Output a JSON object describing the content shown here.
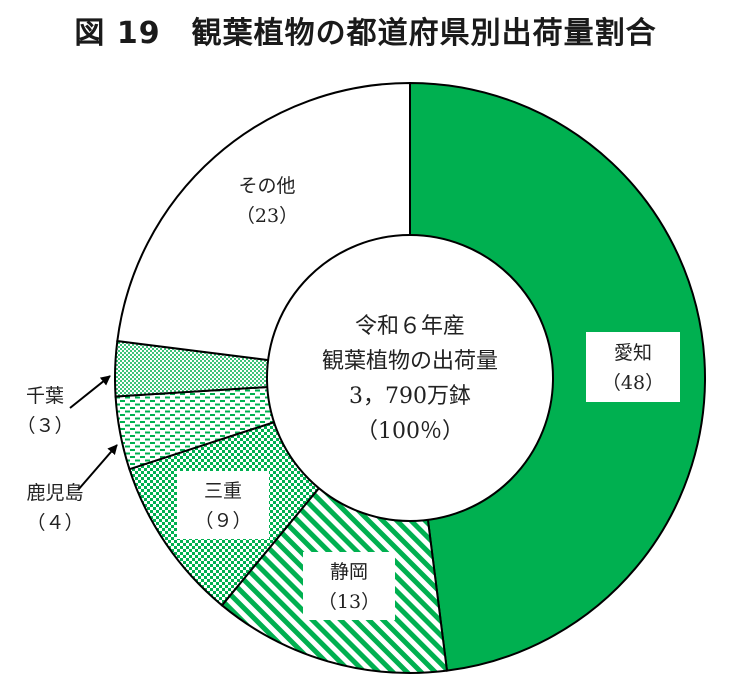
{
  "title": "図 19　観葉植物の都道府県別出荷量割合",
  "center": {
    "line1": "令和６年産",
    "line2": "観葉植物の出荷量",
    "line3": "3，790万鉢",
    "line4": "（100％）"
  },
  "chart_data": {
    "type": "pie",
    "subtype": "donut",
    "title": "図 19　観葉植物の都道府県別出荷量割合",
    "unit": "%",
    "slices": [
      {
        "name": "愛知",
        "value": 48,
        "value_label": "（48）",
        "color": "#00b050",
        "pattern": "solid"
      },
      {
        "name": "静岡",
        "value": 13,
        "value_label": "（13）",
        "color": "#00b050",
        "pattern": "diagonal-stripes"
      },
      {
        "name": "三重",
        "value": 9,
        "value_label": "（９）",
        "color": "#00b050",
        "pattern": "checker"
      },
      {
        "name": "鹿児島",
        "value": 4,
        "value_label": "（４）",
        "color": "#00b050",
        "pattern": "dashes"
      },
      {
        "name": "千葉",
        "value": 3,
        "value_label": "（３）",
        "color": "#00b050",
        "pattern": "dots"
      },
      {
        "name": "その他",
        "value": 23,
        "value_label": "（23）",
        "color": "#ffffff",
        "pattern": "none"
      }
    ]
  }
}
